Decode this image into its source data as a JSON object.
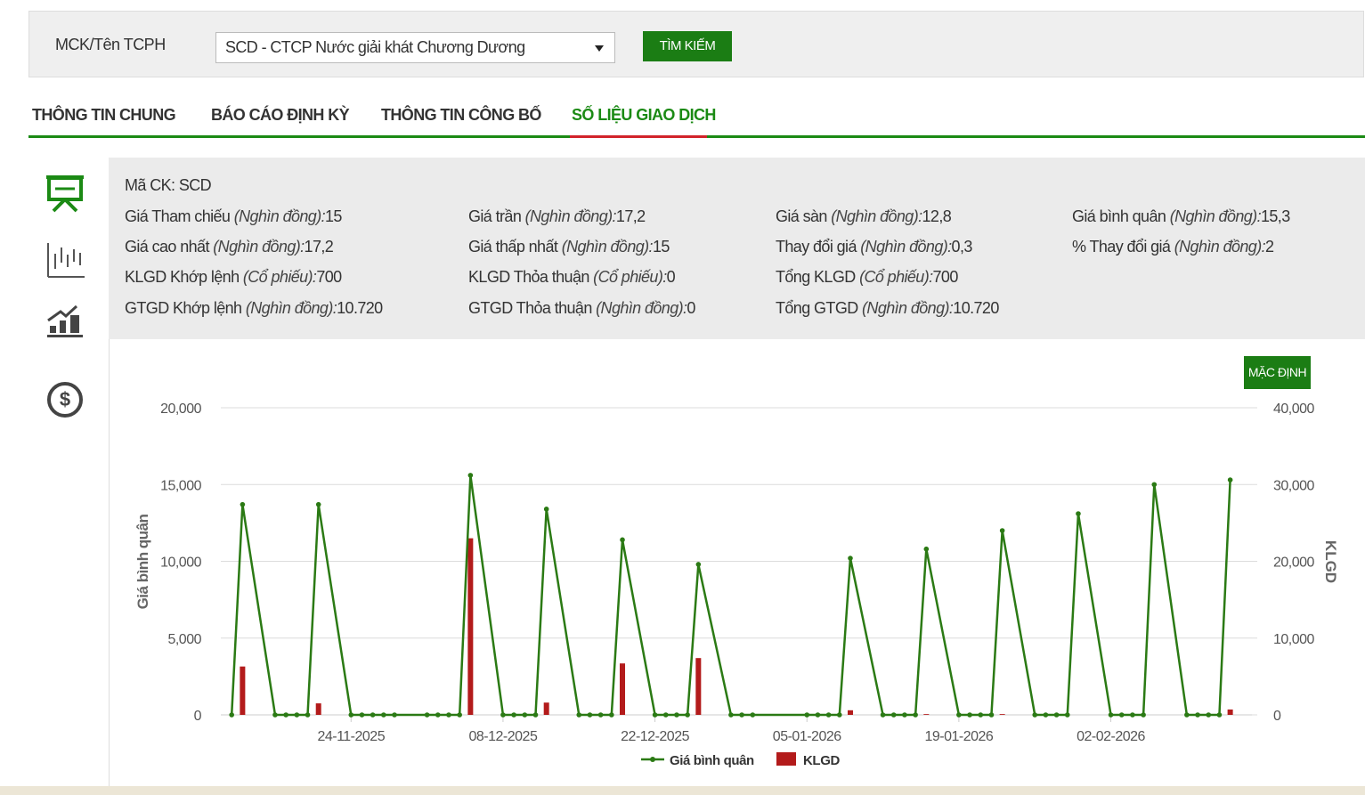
{
  "search": {
    "label": "MCK/Tên TCPH",
    "selected": "SCD - CTCP Nước giải khát Chương Dương",
    "button": "TÌM KIẾM"
  },
  "tabs": [
    "THÔNG TIN CHUNG",
    "BÁO CÁO ĐỊNH KỲ",
    "THÔNG TIN CÔNG BỐ",
    "SỐ LIỆU GIAO DỊCH"
  ],
  "active_tab": 3,
  "info": {
    "code_label": "Mã CK:",
    "code": "SCD",
    "rows": [
      [
        {
          "label": "Giá Tham chiếu",
          "unit": "(Nghìn đồng):",
          "value": "15"
        },
        {
          "label": "Giá trần",
          "unit": "(Nghìn đồng):",
          "value": "17,2"
        },
        {
          "label": "Giá sàn",
          "unit": "(Nghìn đồng):",
          "value": "12,8"
        },
        {
          "label": "Giá bình quân",
          "unit": "(Nghìn đồng):",
          "value": "15,3"
        }
      ],
      [
        {
          "label": "Giá cao nhất",
          "unit": "(Nghìn đồng):",
          "value": "17,2"
        },
        {
          "label": "Giá thấp nhất",
          "unit": "(Nghìn đồng):",
          "value": "15"
        },
        {
          "label": "Thay đổi giá",
          "unit": "(Nghìn đồng):",
          "value": "0,3"
        },
        {
          "label": "% Thay đổi giá",
          "unit": "(Nghìn đồng):",
          "value": "2"
        }
      ],
      [
        {
          "label": "KLGD Khớp lệnh",
          "unit": "(Cổ phiếu):",
          "value": "700"
        },
        {
          "label": "KLGD Thỏa thuận",
          "unit": "(Cổ phiếu):",
          "value": "0"
        },
        {
          "label": "Tổng KLGD",
          "unit": "(Cổ phiếu):",
          "value": "700"
        }
      ],
      [
        {
          "label": "GTGD Khớp lệnh",
          "unit": "(Nghìn đồng):",
          "value": "10.720"
        },
        {
          "label": "GTGD Thỏa thuận",
          "unit": "(Nghìn đồng):",
          "value": "0"
        },
        {
          "label": "Tổng GTGD",
          "unit": "(Nghìn đồng):",
          "value": "10.720"
        }
      ]
    ]
  },
  "reset_button": "MẶC ĐỊNH",
  "chart_data": {
    "type": "combo",
    "ylabel": "Giá bình quân",
    "y2label": "KLGD",
    "x": [
      "13-11-2025",
      "14-11-2025",
      "17-11-2025",
      "18-11-2025",
      "19-11-2025",
      "20-11-2025",
      "21-11-2025",
      "24-11-2025",
      "25-11-2025",
      "26-11-2025",
      "27-11-2025",
      "28-11-2025",
      "01-12-2025",
      "02-12-2025",
      "03-12-2025",
      "04-12-2025",
      "05-12-2025",
      "08-12-2025",
      "09-12-2025",
      "10-12-2025",
      "11-12-2025",
      "12-12-2025",
      "15-12-2025",
      "16-12-2025",
      "17-12-2025",
      "18-12-2025",
      "19-12-2025",
      "22-12-2025",
      "23-12-2025",
      "24-12-2025",
      "25-12-2025",
      "26-12-2025",
      "29-12-2025",
      "30-12-2025",
      "31-12-2025",
      "05-01-2026",
      "06-01-2026",
      "07-01-2026",
      "08-01-2026",
      "09-01-2026",
      "12-01-2026",
      "13-01-2026",
      "14-01-2026",
      "15-01-2026",
      "16-01-2026",
      "19-01-2026",
      "20-01-2026",
      "21-01-2026",
      "22-01-2026",
      "23-01-2026",
      "26-01-2026",
      "27-01-2026",
      "28-01-2026",
      "29-01-2026",
      "30-01-2026",
      "02-02-2026",
      "03-02-2026",
      "04-02-2026",
      "05-02-2026",
      "06-02-2026",
      "09-02-2026",
      "10-02-2026",
      "11-02-2026",
      "12-02-2026",
      "13-02-2026"
    ],
    "series": [
      {
        "name": "Giá bình quân",
        "type": "line",
        "color": "#2b7a14",
        "values": [
          0,
          13700,
          0,
          0,
          0,
          0,
          13700,
          0,
          0,
          0,
          0,
          0,
          0,
          0,
          0,
          0,
          15600,
          0,
          0,
          0,
          0,
          13400,
          0,
          0,
          0,
          0,
          11400,
          0,
          0,
          0,
          0,
          9800,
          0,
          0,
          0,
          0,
          0,
          0,
          0,
          10200,
          0,
          0,
          0,
          0,
          10800,
          0,
          0,
          0,
          0,
          12000,
          0,
          0,
          0,
          0,
          13100,
          0,
          0,
          0,
          0,
          15000,
          0,
          0,
          0,
          0,
          15300
        ]
      },
      {
        "name": "KLGD",
        "type": "bar",
        "axis": "y2",
        "color": "#b31b1b",
        "values": [
          0,
          6300,
          0,
          0,
          0,
          0,
          1500,
          0,
          0,
          0,
          0,
          0,
          0,
          0,
          0,
          0,
          23000,
          0,
          0,
          0,
          0,
          1600,
          0,
          0,
          0,
          0,
          6700,
          0,
          0,
          0,
          0,
          7400,
          0,
          0,
          0,
          0,
          0,
          0,
          0,
          600,
          0,
          0,
          0,
          0,
          100,
          0,
          0,
          0,
          0,
          100,
          0,
          0,
          0,
          0,
          0,
          0,
          0,
          0,
          0,
          0,
          0,
          0,
          0,
          0,
          700
        ]
      }
    ],
    "xlim": [
      "12-11-2025",
      "15-02-2026"
    ],
    "xticks": [
      "24-11-2025",
      "08-12-2025",
      "22-12-2025",
      "05-01-2026",
      "19-01-2026",
      "02-02-2026"
    ],
    "ylim": [
      0,
      20000
    ],
    "yticks": [
      0,
      {
        "value": 5000,
        "label": "5,000"
      },
      {
        "value": 10000,
        "label": "10,000"
      },
      {
        "value": 15000,
        "label": "15,000"
      },
      {
        "value": 20000,
        "label": "20,000"
      }
    ],
    "y2lim": [
      0,
      40000
    ],
    "y2ticks": [
      0,
      {
        "value": 10000,
        "label": "10,000"
      },
      {
        "value": 20000,
        "label": "20,000"
      },
      {
        "value": 30000,
        "label": "30,000"
      },
      {
        "value": 40000,
        "label": "40,000"
      }
    ],
    "grid": true,
    "legend": "bottom"
  }
}
